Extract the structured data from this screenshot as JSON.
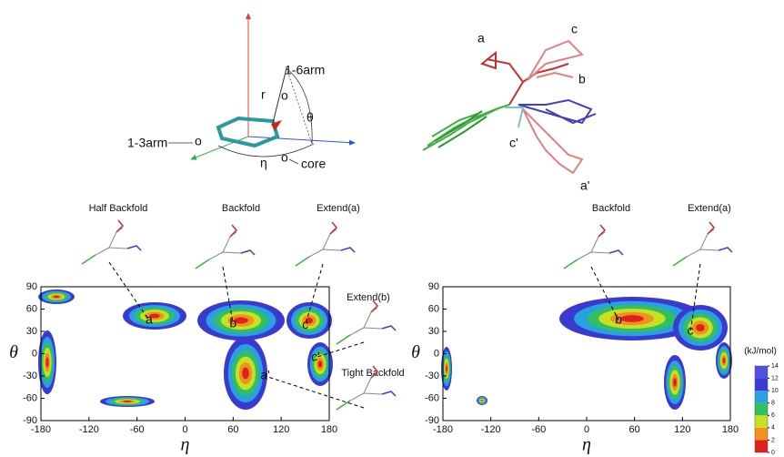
{
  "top_left_diagram": {
    "labels": [
      "1-6arm",
      "r",
      "θ",
      "1-3arm",
      "η",
      "core",
      "o",
      "o",
      "o"
    ]
  },
  "top_right_diagram": {
    "labels": [
      "a",
      "c",
      "b",
      "c'",
      "a'"
    ]
  },
  "chart_data": [
    {
      "type": "contour",
      "xlabel": "η",
      "ylabel": "θ",
      "xlim": [
        -180,
        180
      ],
      "ylim": [
        -90,
        90
      ],
      "xticks": [
        -180,
        -120,
        -60,
        0,
        60,
        120,
        180
      ],
      "yticks": [
        -90,
        -60,
        -30,
        0,
        30,
        60,
        90
      ],
      "annotations": [
        {
          "label": "a",
          "x": -45,
          "y": 45
        },
        {
          "label": "b",
          "x": 60,
          "y": 40
        },
        {
          "label": "c",
          "x": 150,
          "y": 38
        },
        {
          "label": "c'",
          "x": 163,
          "y": -5
        },
        {
          "label": "a'",
          "x": 100,
          "y": -30
        }
      ],
      "structure_labels": [
        "Half  Backfold",
        "Backfold",
        "Extend(a)",
        "Extend(b)",
        "Tight Backfold"
      ]
    },
    {
      "type": "contour",
      "xlabel": "η",
      "ylabel": "θ",
      "xlim": [
        -180,
        180
      ],
      "ylim": [
        -90,
        90
      ],
      "xticks": [
        -180,
        -120,
        -60,
        0,
        60,
        120,
        180
      ],
      "yticks": [
        -90,
        -60,
        -30,
        0,
        30,
        60,
        90
      ],
      "annotations": [
        {
          "label": "b",
          "x": 40,
          "y": 45
        },
        {
          "label": "c",
          "x": 130,
          "y": 30
        }
      ],
      "structure_labels": [
        "Backfold",
        "Extend(a)"
      ]
    }
  ],
  "colorbar": {
    "title": "(kJ/mol)",
    "range": [
      0,
      14
    ],
    "ticks": [
      0,
      2,
      4,
      6,
      8,
      10,
      12,
      14
    ]
  }
}
